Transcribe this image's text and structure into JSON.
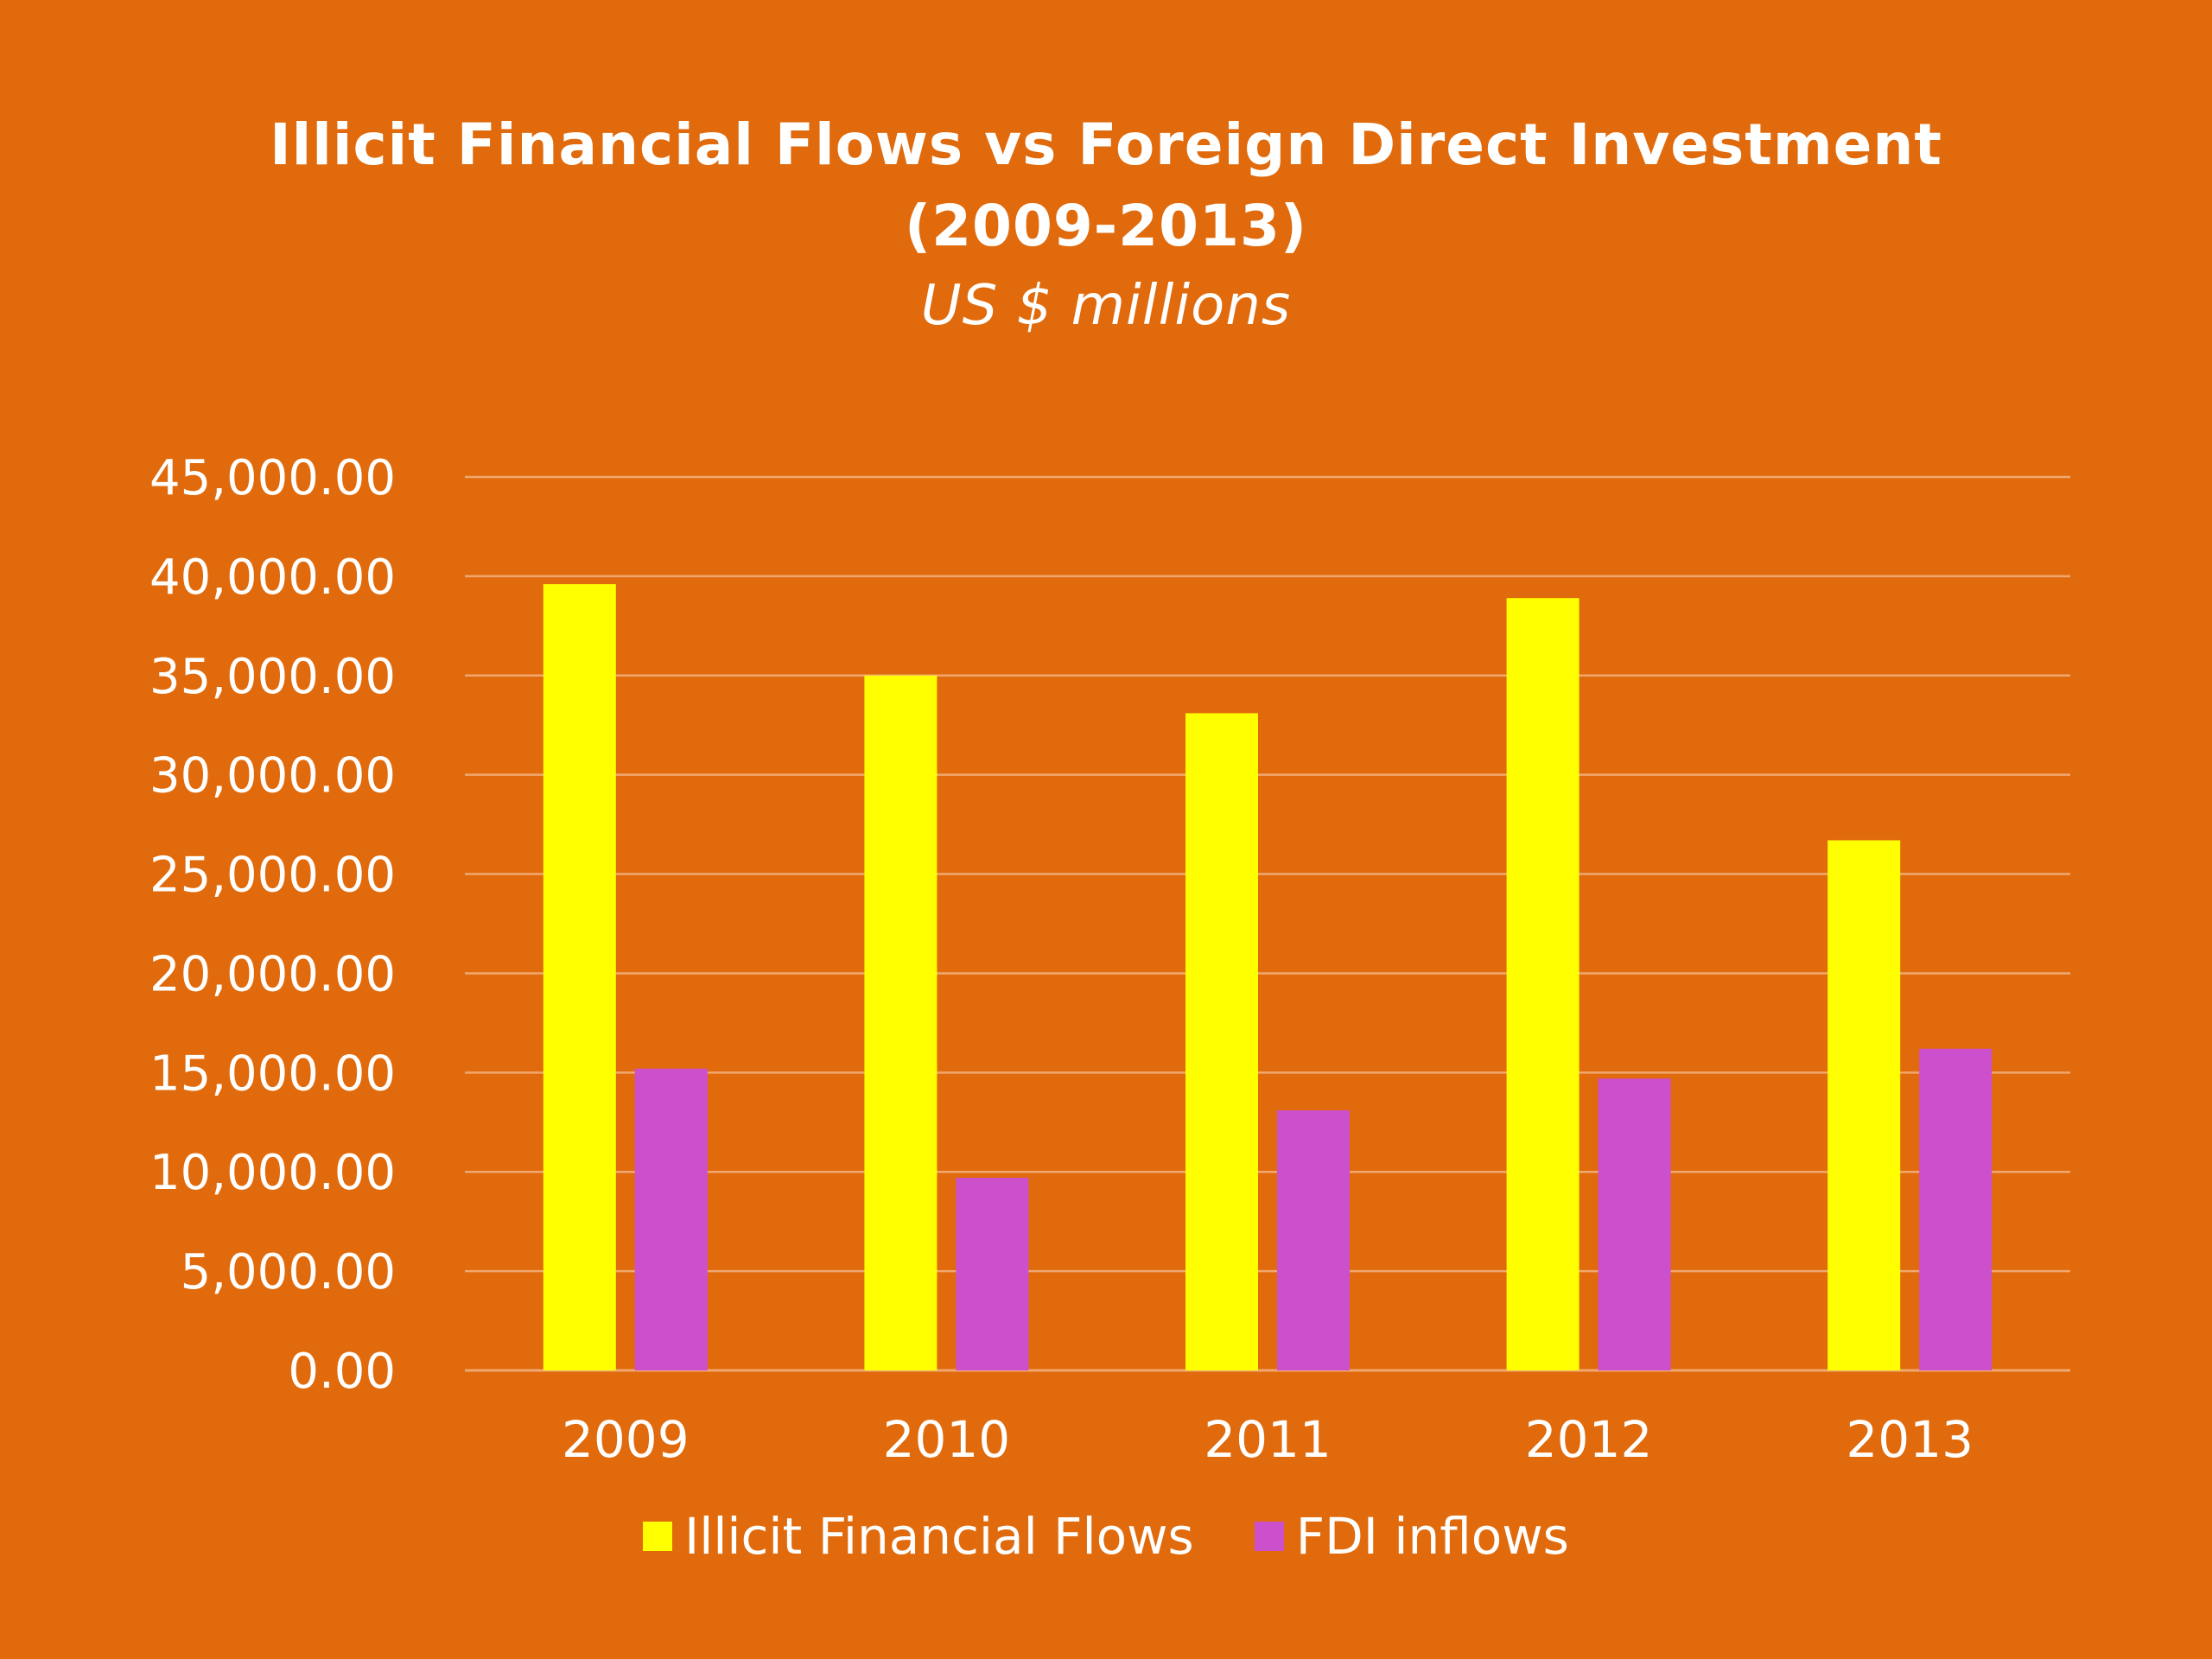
{
  "colors": {
    "background": "#E06A0C",
    "gridline": "#F0A870",
    "text": "#FFFFFF"
  },
  "chart_data": {
    "type": "bar",
    "title": "Illicit Financial Flows vs Foreign Direct Investment",
    "title_line2": "(2009-2013)",
    "subtitle": "US $ millions",
    "categories": [
      "2009",
      "2010",
      "2011",
      "2012",
      "2013"
    ],
    "series": [
      {
        "name": "Illicit Financial Flows",
        "color": "#FFFF00",
        "values": [
          39600,
          35000,
          33100,
          38900,
          26700
        ]
      },
      {
        "name": "FDI inflows",
        "color": "#CC4FCC",
        "values": [
          15200,
          9700,
          13100,
          14700,
          16200
        ]
      }
    ],
    "ylim": [
      0,
      45000
    ],
    "yticks": [
      0,
      5000,
      10000,
      15000,
      20000,
      25000,
      30000,
      35000,
      40000,
      45000
    ],
    "ytick_labels": [
      "0.00",
      "5,000.00",
      "10,000.00",
      "15,000.00",
      "20,000.00",
      "25,000.00",
      "30,000.00",
      "35,000.00",
      "40,000.00",
      "45,000.00"
    ],
    "grid": true,
    "legend_position": "bottom"
  }
}
